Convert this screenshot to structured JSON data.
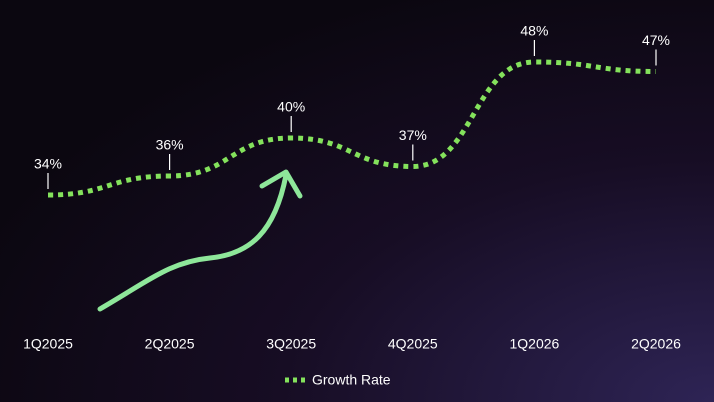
{
  "chart_data": {
    "type": "line",
    "categories": [
      "1Q2025",
      "2Q2025",
      "3Q2025",
      "4Q2025",
      "1Q2026",
      "2Q2026"
    ],
    "series": [
      {
        "name": "Growth Rate",
        "color": "#84e25c",
        "values": [
          34,
          36,
          40,
          37,
          48,
          47
        ],
        "value_labels": [
          "34%",
          "36%",
          "40%",
          "37%",
          "48%",
          "47%"
        ]
      }
    ],
    "line_style": "dotted",
    "smooth": true,
    "legend": "bottom"
  }
}
